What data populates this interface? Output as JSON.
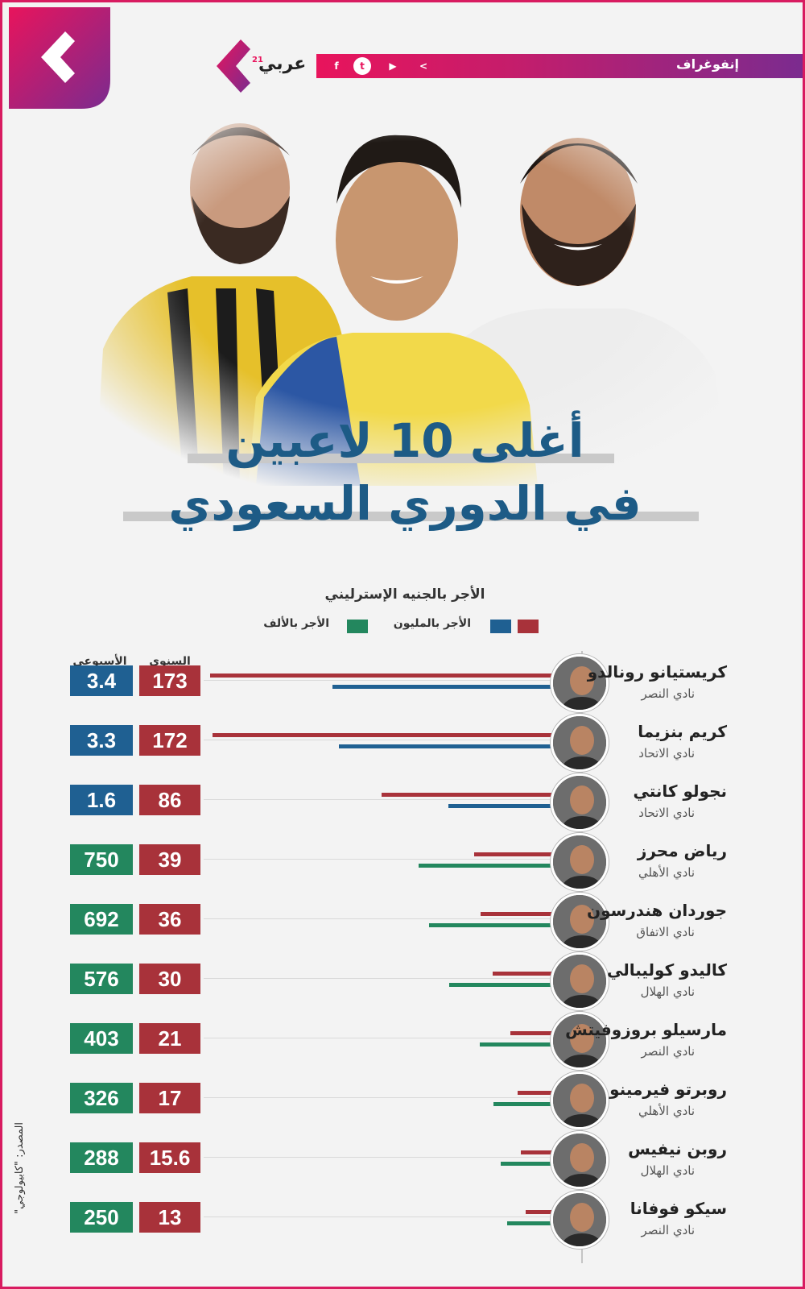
{
  "header": {
    "label": "إنفوغراف",
    "brand_name": "عربي",
    "brand_sup": "21",
    "social": [
      "facebook-icon",
      "twitter-icon",
      "youtube-icon",
      "arabi21-icon"
    ]
  },
  "title": {
    "line1": "أغلى 10 لاعبين",
    "line2": "في الدوري السعودي"
  },
  "legend": {
    "title": "الأجر بالجنيه الإسترليني",
    "million": "الأجر بالمليون",
    "thousand": "الأجر بالألف"
  },
  "columns": {
    "annual": "السنوي",
    "weekly": "الأسبوعي"
  },
  "source": "المصدر: \"كابيولوجي\"",
  "colors": {
    "annual": "#a8323a",
    "weekly_million": "#1f6092",
    "weekly_thousand": "#23875e",
    "title": "#1d5b86",
    "accent": "#e8145c"
  },
  "chart_data": {
    "type": "bar",
    "orientation": "horizontal",
    "categories": [
      "كريستيانو رونالدو",
      "كريم بنزيما",
      "نجولو كانتي",
      "رياض محرز",
      "جوردان هندرسون",
      "كاليدو كوليبالي",
      "مارسيلو بروزوفيتش",
      "روبرتو فيرمينو",
      "روبن نيفيس",
      "سيكو فوفانا"
    ],
    "clubs": [
      "نادي النصر",
      "نادي الاتحاد",
      "نادي الاتحاد",
      "نادي الأهلي",
      "نادي الاتفاق",
      "نادي الهلال",
      "نادي النصر",
      "نادي الأهلي",
      "نادي الهلال",
      "نادي النصر"
    ],
    "series": [
      {
        "name": "السنوي",
        "unit": "الأجر بالمليون",
        "values": [
          173,
          172,
          86,
          39,
          36,
          30,
          21,
          17,
          15.6,
          13
        ],
        "labels": [
          "173",
          "172",
          "86",
          "39",
          "36",
          "30",
          "21",
          "17",
          "15.6",
          "13"
        ]
      },
      {
        "name": "الأسبوعي",
        "values": [
          3.4,
          3.3,
          1.6,
          750,
          692,
          576,
          403,
          326,
          288,
          250
        ],
        "labels": [
          "3.4",
          "3.3",
          "1.6",
          "750",
          "692",
          "576",
          "403",
          "326",
          "288",
          "250"
        ],
        "units": [
          "الأجر بالمليون",
          "الأجر بالمليون",
          "الأجر بالمليون",
          "الأجر بالألف",
          "الأجر بالألف",
          "الأجر بالألف",
          "الأجر بالألف",
          "الأجر بالألف",
          "الأجر بالألف",
          "الأجر بالألف"
        ]
      }
    ]
  }
}
